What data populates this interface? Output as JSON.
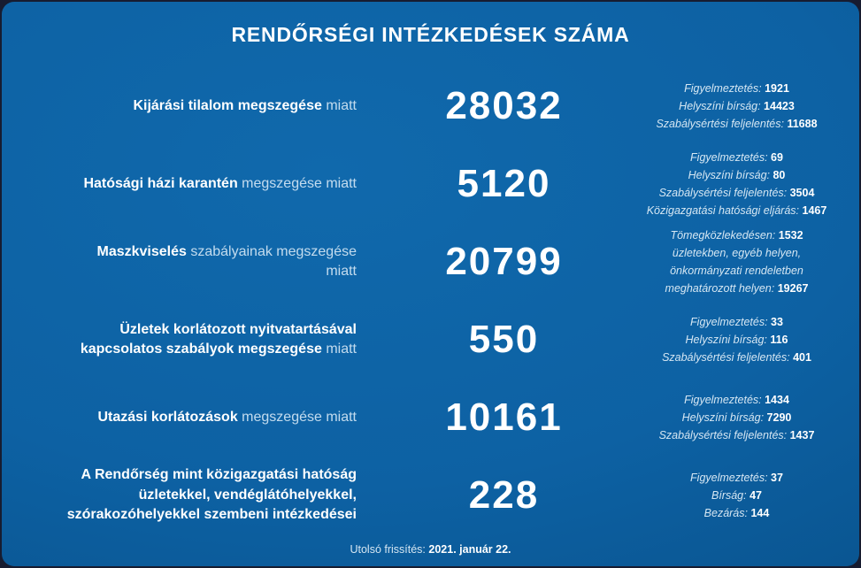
{
  "title": "RENDŐRSÉGI INTÉZKEDÉSEK SZÁMA",
  "footer": {
    "label": "Utolsó frissítés:",
    "value": "2021. január 22."
  },
  "colors": {
    "card_blue": "#0d61a3",
    "card_blue_dark": "#084b81",
    "outer_navy": "#171c30",
    "text": "#ffffff"
  },
  "chart_data": {
    "type": "table",
    "title": "RENDŐRSÉGI INTÉZKEDÉSEK SZÁMA",
    "categories": [
      "Kijárási tilalom megszegése miatt",
      "Hatósági házi karantén megszegése miatt",
      "Maszkviselés szabályainak megszegése miatt",
      "Üzletek korlátozott nyitvatartásával kapcsolatos szabályok megszegése miatt",
      "Utazási korlátozások megszegése miatt",
      "A Rendőrség mint közigazgatási hatóság üzletekkel, vendéglátóhelyekkel, szórakozóhelyekkel szembeni intézkedései"
    ],
    "values": [
      28032,
      5120,
      20799,
      550,
      10161,
      228
    ],
    "footer_note": "Utolsó frissítés: 2021. január 22.",
    "rows": [
      {
        "label_bold": "Kijárási tilalom megszegése",
        "label_light": " miatt",
        "value": "28032",
        "details": [
          {
            "label": "Figyelmeztetés:",
            "value": "1921"
          },
          {
            "label": "Helyszíni bírság:",
            "value": "14423"
          },
          {
            "label": "Szabálysértési feljelentés:",
            "value": "11688"
          }
        ]
      },
      {
        "label_bold": "Hatósági házi karantén",
        "label_light": " megszegése miatt",
        "value": "5120",
        "details": [
          {
            "label": "Figyelmeztetés:",
            "value": "69"
          },
          {
            "label": "Helyszíni bírság:",
            "value": "80"
          },
          {
            "label": "Szabálysértési feljelentés:",
            "value": "3504"
          },
          {
            "label": "Közigazgatási hatósági eljárás:",
            "value": "1467"
          }
        ]
      },
      {
        "label_bold": "Maszkviselés",
        "label_light": " szabályainak megszegése miatt",
        "value": "20799",
        "details": [
          {
            "label": "Tömegközlekedésen:",
            "value": "1532"
          },
          {
            "label": "üzletekben, egyéb helyen,",
            "value": ""
          },
          {
            "label": "önkormányzati rendeletben",
            "value": ""
          },
          {
            "label": "meghatározott helyen:",
            "value": "19267"
          }
        ]
      },
      {
        "label_bold": "Üzletek korlátozott nyitvatartásával kapcsolatos szabályok megszegése",
        "label_light": " miatt",
        "value": "550",
        "details": [
          {
            "label": "Figyelmeztetés:",
            "value": "33"
          },
          {
            "label": "Helyszíni bírság:",
            "value": "116"
          },
          {
            "label": "Szabálysértési feljelentés:",
            "value": "401"
          }
        ]
      },
      {
        "label_bold": "Utazási korlátozások",
        "label_light": " megszegése miatt",
        "value": "10161",
        "details": [
          {
            "label": "Figyelmeztetés:",
            "value": "1434"
          },
          {
            "label": "Helyszíni bírság:",
            "value": "7290"
          },
          {
            "label": "Szabálysértési feljelentés:",
            "value": "1437"
          }
        ]
      },
      {
        "label_bold": "A Rendőrség mint közigazgatási hatóság üzletekkel, vendéglátóhelyekkel, szórakozóhelyekkel szembeni intézkedései",
        "label_light": "",
        "value": "228",
        "details": [
          {
            "label": "Figyelmeztetés:",
            "value": "37"
          },
          {
            "label": "Bírság:",
            "value": "47"
          },
          {
            "label": "Bezárás:",
            "value": "144"
          }
        ]
      }
    ]
  }
}
